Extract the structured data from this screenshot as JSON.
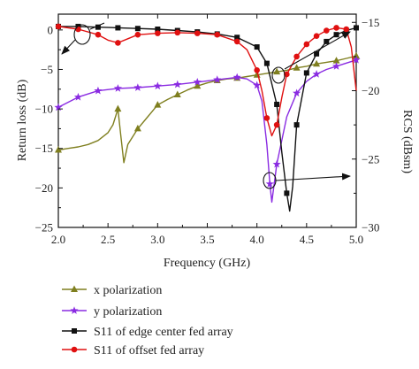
{
  "chart_data": {
    "type": "line",
    "xlabel": "Frequency (GHz)",
    "ylabel": "Return loss (dB)",
    "y2label": "RCS (dBsm)",
    "xlim": [
      2.0,
      5.0
    ],
    "ylim": [
      -25,
      2
    ],
    "y2lim": [
      -30,
      -14.4
    ],
    "xticks": [
      "2.0",
      "2.5",
      "3.0",
      "3.5",
      "4.0",
      "4.5",
      "5.0"
    ],
    "yticks": [
      "0",
      "−5",
      "−10",
      "−15",
      "−20",
      "−25"
    ],
    "y2ticks": [
      "−15",
      "−20",
      "−25",
      "−30"
    ],
    "grid": false,
    "legend_position": "bottom",
    "series": [
      {
        "name": "x polarization",
        "color": "#7f7f1f",
        "marker": "triangle",
        "axis": "y",
        "x": [
          2.0,
          2.1,
          2.2,
          2.3,
          2.4,
          2.5,
          2.55,
          2.6,
          2.63,
          2.66,
          2.7,
          2.8,
          2.9,
          3.0,
          3.1,
          3.2,
          3.3,
          3.4,
          3.5,
          3.6,
          3.7,
          3.8,
          3.9,
          4.0,
          4.1,
          4.2,
          4.3,
          4.4,
          4.5,
          4.6,
          4.7,
          4.8,
          4.9,
          5.0
        ],
        "y": [
          -15.2,
          -15.0,
          -14.8,
          -14.5,
          -14.0,
          -13.0,
          -12.0,
          -10.0,
          -13.5,
          -16.8,
          -14.5,
          -12.5,
          -11.0,
          -9.5,
          -8.8,
          -8.2,
          -7.6,
          -7.1,
          -6.7,
          -6.4,
          -6.2,
          -6.1,
          -5.9,
          -5.7,
          -5.5,
          -5.3,
          -5.1,
          -4.8,
          -4.6,
          -4.3,
          -4.1,
          -3.9,
          -3.6,
          -3.3
        ],
        "marker_x": [
          2.0,
          2.6,
          2.8,
          3.0,
          3.2,
          3.4,
          3.6,
          3.8,
          4.0,
          4.2,
          4.4,
          4.6,
          4.8,
          5.0
        ]
      },
      {
        "name": "y polarization",
        "color": "#8a2be2",
        "marker": "star",
        "axis": "y",
        "x": [
          2.0,
          2.2,
          2.4,
          2.6,
          2.8,
          3.0,
          3.2,
          3.4,
          3.6,
          3.8,
          3.9,
          4.0,
          4.05,
          4.1,
          4.13,
          4.15,
          4.2,
          4.3,
          4.4,
          4.5,
          4.6,
          4.7,
          4.8,
          4.9,
          5.0
        ],
        "y": [
          -9.8,
          -8.5,
          -7.7,
          -7.4,
          -7.3,
          -7.1,
          -6.9,
          -6.6,
          -6.3,
          -6.0,
          -6.2,
          -7.0,
          -9.0,
          -14.5,
          -19.5,
          -21.8,
          -17.0,
          -11.0,
          -8.0,
          -6.5,
          -5.6,
          -5.0,
          -4.6,
          -4.2,
          -3.8
        ],
        "marker_x": [
          2.0,
          2.2,
          2.4,
          2.6,
          2.8,
          3.0,
          3.2,
          3.4,
          3.6,
          3.8,
          4.0,
          4.13,
          4.2,
          4.4,
          4.6,
          4.8,
          5.0
        ]
      },
      {
        "name": "S11 of edge center fed array",
        "color": "#111111",
        "marker": "square",
        "axis": "y2",
        "x": [
          2.0,
          2.2,
          2.4,
          2.6,
          2.8,
          3.0,
          3.2,
          3.4,
          3.6,
          3.8,
          4.0,
          4.1,
          4.2,
          4.25,
          4.3,
          4.33,
          4.36,
          4.4,
          4.5,
          4.6,
          4.7,
          4.8,
          4.9,
          5.0
        ],
        "y": [
          -15.3,
          -15.3,
          -15.35,
          -15.4,
          -15.45,
          -15.5,
          -15.6,
          -15.7,
          -15.85,
          -16.1,
          -16.8,
          -18.0,
          -21.0,
          -24.5,
          -27.5,
          -28.8,
          -27.0,
          -22.5,
          -18.7,
          -17.3,
          -16.4,
          -15.9,
          -15.6,
          -15.4
        ],
        "marker_x": [
          2.0,
          2.2,
          2.4,
          2.6,
          2.8,
          3.0,
          3.2,
          3.4,
          3.6,
          3.8,
          4.0,
          4.1,
          4.2,
          4.3,
          4.4,
          4.5,
          4.6,
          4.7,
          4.8,
          4.9,
          5.0
        ]
      },
      {
        "name": "S11 of offset fed array",
        "color": "#e01010",
        "marker": "circle",
        "axis": "y2",
        "x": [
          2.0,
          2.2,
          2.4,
          2.5,
          2.6,
          2.7,
          2.8,
          2.9,
          3.0,
          3.2,
          3.4,
          3.6,
          3.8,
          3.9,
          4.0,
          4.05,
          4.1,
          4.15,
          4.2,
          4.25,
          4.3,
          4.4,
          4.5,
          4.6,
          4.7,
          4.8,
          4.9,
          4.95,
          5.0
        ],
        "y": [
          -15.3,
          -15.5,
          -15.9,
          -16.3,
          -16.5,
          -16.2,
          -15.9,
          -15.85,
          -15.8,
          -15.75,
          -15.8,
          -15.9,
          -16.4,
          -17.0,
          -18.5,
          -20.0,
          -22.0,
          -23.3,
          -22.5,
          -20.5,
          -18.8,
          -17.5,
          -16.6,
          -16.0,
          -15.6,
          -15.4,
          -15.5,
          -16.8,
          -20.0
        ],
        "marker_x": [
          2.0,
          2.2,
          2.4,
          2.6,
          2.8,
          3.0,
          3.2,
          3.4,
          3.6,
          3.8,
          4.0,
          4.1,
          4.2,
          4.3,
          4.4,
          4.5,
          4.6,
          4.7,
          4.8,
          4.9
        ]
      }
    ],
    "legend": [
      {
        "label": "x polarization",
        "series": 0
      },
      {
        "label": "y polarization",
        "series": 1
      },
      {
        "label": "S11 of edge center fed array",
        "series": 2
      },
      {
        "label": "S11 of offset fed array",
        "series": 3
      }
    ]
  }
}
